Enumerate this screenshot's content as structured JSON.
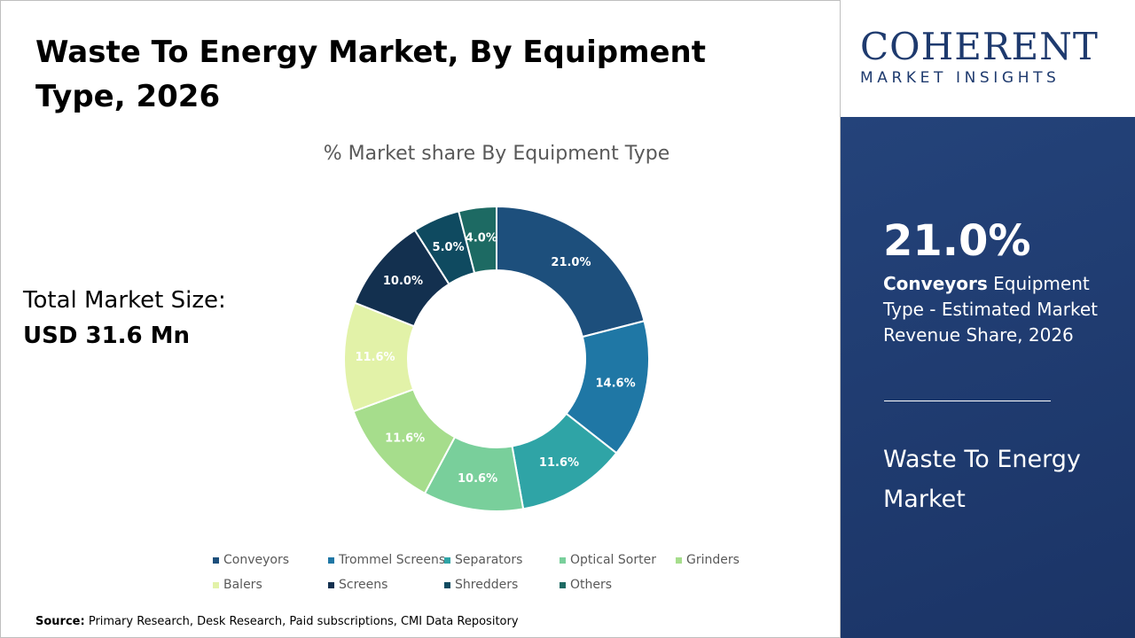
{
  "chart_data": {
    "type": "donut",
    "title": "Waste To Energy Market, By Equipment Type, 2026",
    "subtitle": "% Market share By Equipment Type",
    "categories": [
      "Conveyors",
      "Trommel Screens",
      "Separators",
      "Optical Sorter",
      "Grinders",
      "Balers",
      "Screens",
      "Shredders",
      "Others"
    ],
    "series": [
      {
        "name": "% Market share",
        "values": [
          21.0,
          14.6,
          11.6,
          10.6,
          11.6,
          11.6,
          10.0,
          5.0,
          4.0
        ],
        "value_labels": [
          "21.0%",
          "14.6%",
          "11.6%",
          "10.6%",
          "11.6%",
          "11.6%",
          "10.0%",
          "5.0%",
          "4.0%"
        ]
      }
    ],
    "colors": [
      "#1d4f7c",
      "#1f77a5",
      "#2fa4a6",
      "#79cf9b",
      "#a6dd8c",
      "#e2f2a8",
      "#13304f",
      "#0f4a60",
      "#1d6a63"
    ],
    "legend": "bottom"
  },
  "market_size": {
    "label": "Total Market Size:",
    "value": "USD 31.6 Mn"
  },
  "source": {
    "label": "Source:",
    "text": "Primary Research, Desk Research, Paid subscriptions, CMI Data Repository"
  },
  "logo": {
    "name": "COHERENT",
    "tagline": "MARKET INSIGHTS"
  },
  "panel": {
    "highlight_value": "21.0%",
    "highlight_category": "Conveyors",
    "highlight_text": "Equipment Type - Estimated Market Revenue Share, 2026",
    "market_name": "Waste To Energy Market"
  }
}
